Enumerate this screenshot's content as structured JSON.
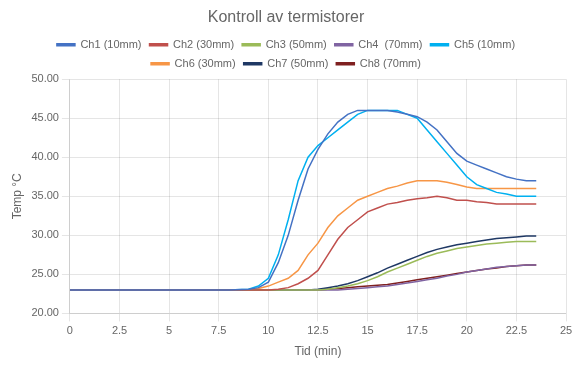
{
  "chart_data": {
    "type": "line",
    "title": "Kontroll av termistorer",
    "xlabel": "Tid (min)",
    "ylabel": "Temp °C",
    "xlim": [
      0,
      25
    ],
    "ylim": [
      20.0,
      50.0
    ],
    "xticks": [
      0,
      2.5,
      5,
      7.5,
      10,
      12.5,
      15,
      17.5,
      20,
      22.5,
      25
    ],
    "yticks": [
      {
        "value": 20,
        "label": "20.00"
      },
      {
        "value": 25,
        "label": "25.00"
      },
      {
        "value": 30,
        "label": "30.00"
      },
      {
        "value": 35,
        "label": "35.00"
      },
      {
        "value": 40,
        "label": "40.00"
      },
      {
        "value": 45,
        "label": "45.00"
      },
      {
        "value": 50,
        "label": "50.00"
      }
    ],
    "grid": true,
    "legend": "top",
    "x": [
      0,
      1,
      2,
      3,
      4,
      5,
      6,
      7,
      8,
      9,
      9.5,
      10,
      10.5,
      11,
      11.5,
      12,
      12.5,
      13,
      13.5,
      14,
      14.5,
      15,
      15.5,
      16,
      16.5,
      17,
      17.5,
      18,
      18.5,
      19,
      19.5,
      20,
      20.5,
      21,
      21.5,
      22,
      22.5,
      23,
      23.5
    ],
    "series": [
      {
        "name": "Ch1 (10mm)",
        "color": "#4472C4",
        "values": [
          23.0,
          23.0,
          23.0,
          23.0,
          23.0,
          23.0,
          23.0,
          23.0,
          23.0,
          23.1,
          23.3,
          24.0,
          26.5,
          30.0,
          34.5,
          38.5,
          41.0,
          43.0,
          44.5,
          45.5,
          46.0,
          46.0,
          46.0,
          46.0,
          45.8,
          45.5,
          45.2,
          44.5,
          43.5,
          42.0,
          40.5,
          39.5,
          39.0,
          38.5,
          38.0,
          37.5,
          37.2,
          37.0,
          37.0
        ]
      },
      {
        "name": "Ch2 (30mm)",
        "color": "#C0504D",
        "values": [
          23.0,
          23.0,
          23.0,
          23.0,
          23.0,
          23.0,
          23.0,
          23.0,
          23.0,
          23.0,
          23.0,
          23.0,
          23.1,
          23.3,
          23.8,
          24.5,
          25.5,
          27.5,
          29.5,
          31.0,
          32.0,
          33.0,
          33.5,
          34.0,
          34.2,
          34.5,
          34.7,
          34.8,
          35.0,
          34.8,
          34.5,
          34.5,
          34.3,
          34.2,
          34.0,
          34.0,
          34.0,
          34.0,
          34.0
        ]
      },
      {
        "name": "Ch3 (50mm)",
        "color": "#9BBB59",
        "values": [
          23.0,
          23.0,
          23.0,
          23.0,
          23.0,
          23.0,
          23.0,
          23.0,
          23.0,
          23.0,
          23.0,
          23.0,
          23.0,
          23.0,
          23.0,
          23.0,
          23.0,
          23.1,
          23.3,
          23.5,
          23.8,
          24.2,
          24.7,
          25.3,
          25.8,
          26.3,
          26.8,
          27.3,
          27.7,
          28.0,
          28.3,
          28.5,
          28.7,
          28.9,
          29.0,
          29.1,
          29.2,
          29.2,
          29.2
        ]
      },
      {
        "name": "Ch4  (70mm)",
        "color": "#8064A2",
        "values": [
          23.0,
          23.0,
          23.0,
          23.0,
          23.0,
          23.0,
          23.0,
          23.0,
          23.0,
          23.0,
          23.0,
          23.0,
          23.0,
          23.0,
          23.0,
          23.0,
          23.0,
          23.0,
          23.0,
          23.1,
          23.2,
          23.3,
          23.4,
          23.5,
          23.7,
          23.9,
          24.1,
          24.3,
          24.5,
          24.8,
          25.0,
          25.3,
          25.5,
          25.7,
          25.9,
          26.0,
          26.1,
          26.2,
          26.2
        ]
      },
      {
        "name": "Ch5 (10mm)",
        "color": "#00B0F0",
        "values": [
          23.0,
          23.0,
          23.0,
          23.0,
          23.0,
          23.0,
          23.0,
          23.0,
          23.0,
          23.1,
          23.5,
          24.5,
          27.5,
          32.0,
          37.0,
          40.0,
          41.5,
          42.5,
          43.5,
          44.5,
          45.5,
          46.0,
          46.0,
          46.0,
          46.0,
          45.5,
          45.0,
          43.5,
          42.0,
          40.5,
          39.0,
          37.5,
          36.5,
          36.0,
          35.5,
          35.3,
          35.0,
          35.0,
          35.0
        ]
      },
      {
        "name": "Ch6 (30mm)",
        "color": "#F79646",
        "values": [
          23.0,
          23.0,
          23.0,
          23.0,
          23.0,
          23.0,
          23.0,
          23.0,
          23.0,
          23.0,
          23.2,
          23.5,
          24.0,
          24.5,
          25.5,
          27.5,
          29.0,
          31.0,
          32.5,
          33.5,
          34.5,
          35.0,
          35.5,
          36.0,
          36.3,
          36.7,
          37.0,
          37.0,
          37.0,
          36.8,
          36.5,
          36.2,
          36.0,
          36.0,
          36.0,
          36.0,
          36.0,
          36.0,
          36.0
        ]
      },
      {
        "name": "Ch7 (50mm)",
        "color": "#1F3864",
        "values": [
          23.0,
          23.0,
          23.0,
          23.0,
          23.0,
          23.0,
          23.0,
          23.0,
          23.0,
          23.0,
          23.0,
          23.0,
          23.0,
          23.0,
          23.0,
          23.0,
          23.1,
          23.3,
          23.5,
          23.8,
          24.2,
          24.7,
          25.2,
          25.8,
          26.3,
          26.8,
          27.3,
          27.8,
          28.2,
          28.5,
          28.8,
          29.0,
          29.2,
          29.4,
          29.6,
          29.7,
          29.8,
          29.9,
          29.9
        ]
      },
      {
        "name": "Ch8 (70mm)",
        "color": "#7F2020",
        "values": [
          23.0,
          23.0,
          23.0,
          23.0,
          23.0,
          23.0,
          23.0,
          23.0,
          23.0,
          23.0,
          23.0,
          23.0,
          23.0,
          23.0,
          23.0,
          23.0,
          23.0,
          23.1,
          23.2,
          23.3,
          23.4,
          23.5,
          23.6,
          23.7,
          23.9,
          24.1,
          24.3,
          24.5,
          24.7,
          24.9,
          25.1,
          25.3,
          25.5,
          25.7,
          25.8,
          26.0,
          26.1,
          26.2,
          26.2
        ]
      }
    ]
  }
}
